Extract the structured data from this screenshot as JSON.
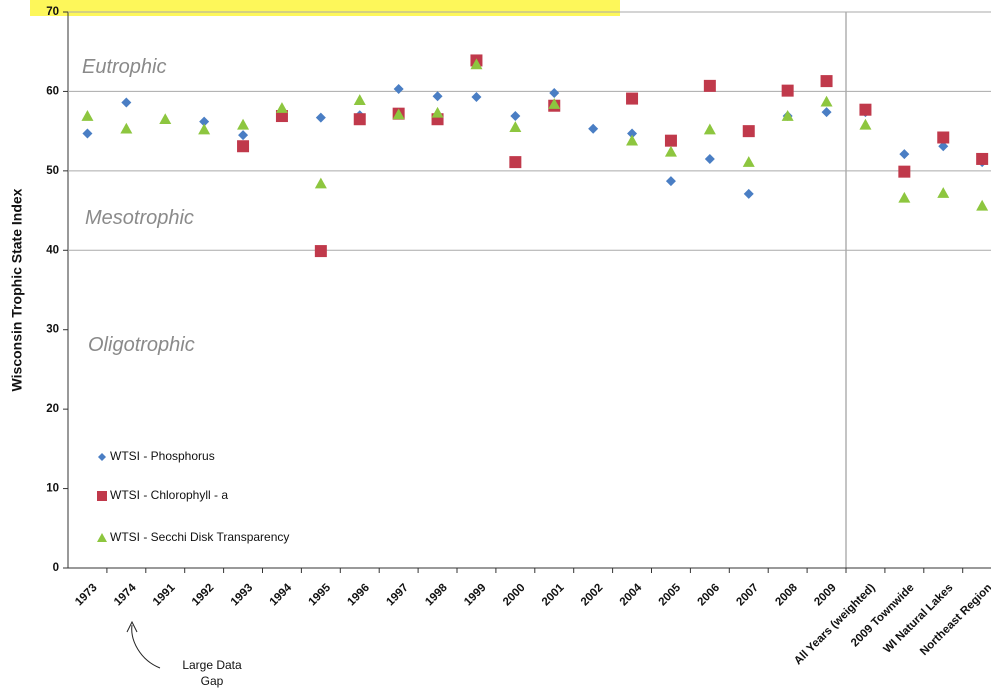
{
  "chart_data": {
    "type": "scatter",
    "y_label": "Wisconsin Trophic State Index",
    "categories": [
      "1973",
      "1974",
      "1991",
      "1992",
      "1993",
      "1994",
      "1995",
      "1996",
      "1997",
      "1998",
      "1999",
      "2000",
      "2001",
      "2002",
      "2004",
      "2005",
      "2006",
      "2007",
      "2008",
      "2009",
      "All Years (weighted)",
      "2009 Townwide",
      "WI Natural  Lakes",
      "Northeast Region"
    ],
    "series": [
      {
        "name": "WTSI - Phosphorus",
        "color": "#4a7ec4",
        "marker": "diamond",
        "values": [
          54.7,
          58.6,
          null,
          56.2,
          54.5,
          57,
          56.7,
          57,
          60.3,
          59.4,
          59.3,
          56.9,
          59.8,
          55.3,
          54.7,
          48.7,
          51.5,
          47.1,
          56.9,
          57.4,
          57.4,
          52.1,
          53.1,
          51.1
        ]
      },
      {
        "name": "WTSI - Chlorophyll - a",
        "color": "#c0394b",
        "marker": "square",
        "values": [
          null,
          null,
          null,
          null,
          53.1,
          56.9,
          39.9,
          56.5,
          57.2,
          56.5,
          63.9,
          51.1,
          58.2,
          null,
          59.1,
          53.8,
          60.7,
          55,
          60.1,
          61.3,
          57.7,
          49.9,
          54.2,
          51.5
        ]
      },
      {
        "name": "WTSI - Secchi Disk Transparency",
        "color": "#8dc63f",
        "marker": "triangle",
        "values": [
          56.9,
          55.3,
          56.5,
          55.2,
          55.8,
          57.9,
          48.4,
          58.9,
          57.1,
          57.3,
          63.4,
          55.5,
          58.4,
          null,
          53.8,
          52.4,
          55.2,
          51.1,
          56.9,
          58.7,
          55.8,
          46.6,
          47.2,
          45.6
        ]
      }
    ],
    "ylim": [
      0,
      70
    ],
    "yticks": [
      0,
      10,
      20,
      30,
      40,
      50,
      60,
      70
    ],
    "grid_lines": [
      40,
      50,
      60,
      70
    ],
    "annotations": [
      {
        "text": "Eutrophic",
        "value": 63
      },
      {
        "text": "Mesotrophic",
        "value": 44
      },
      {
        "text": "Oligotrophic",
        "value": 28
      }
    ],
    "note": "Large Data Gap"
  }
}
